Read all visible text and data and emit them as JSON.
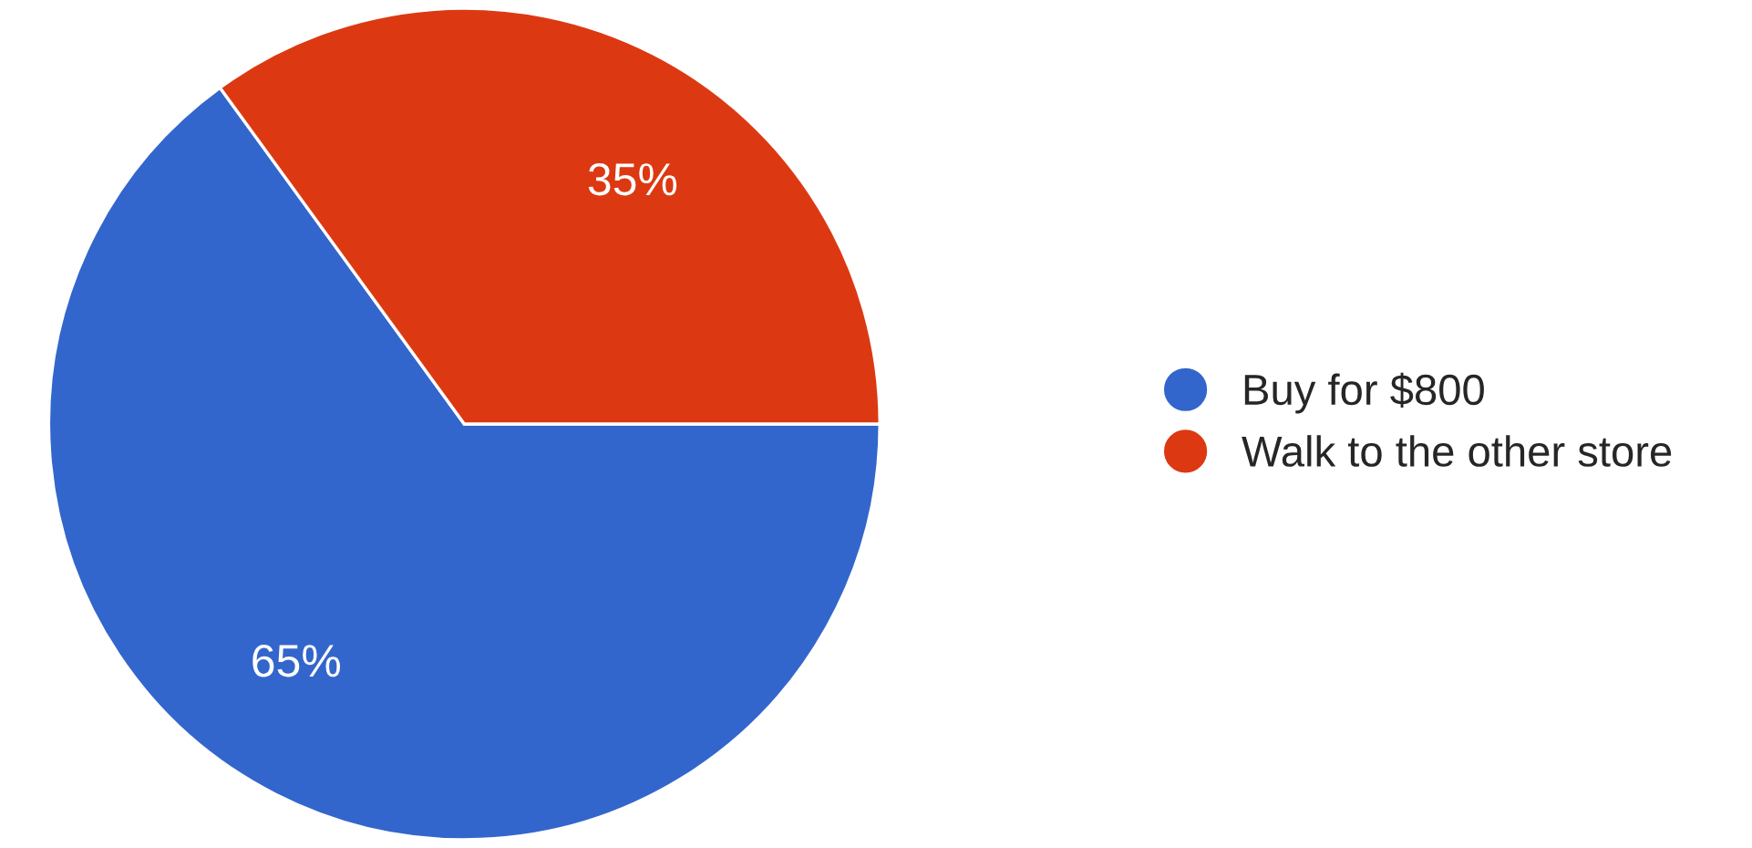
{
  "chart_data": {
    "type": "pie",
    "categories": [
      "Buy for $800",
      "Walk to the other store"
    ],
    "values": [
      65,
      35
    ],
    "colors": [
      "#3366cc",
      "#dc3912"
    ],
    "value_labels": [
      "65%",
      "35%"
    ],
    "legend": "right"
  }
}
